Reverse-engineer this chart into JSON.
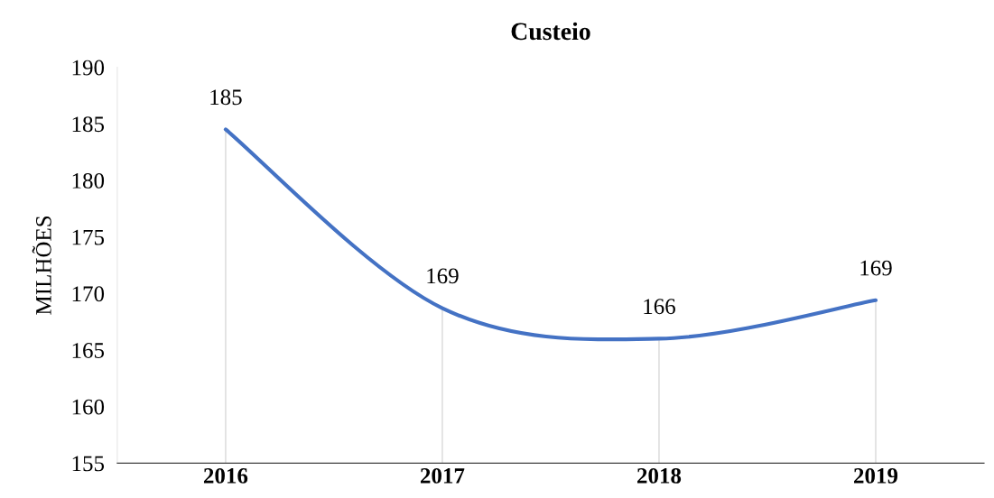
{
  "chart_data": {
    "type": "line",
    "title": "Custeio",
    "ylabel": "MILHÕES",
    "categories": [
      "2016",
      "2017",
      "2018",
      "2019"
    ],
    "series": [
      {
        "color": "#4472c4",
        "values": [
          184.5,
          168.7,
          166.0,
          169.4
        ],
        "value_labels": [
          "185",
          "169",
          "166",
          "169"
        ]
      }
    ],
    "ylim": [
      155,
      190
    ],
    "yticks": [
      155,
      160,
      165,
      170,
      175,
      180,
      185,
      190
    ],
    "grid": "x",
    "marker": "none",
    "line_style": "solid"
  }
}
